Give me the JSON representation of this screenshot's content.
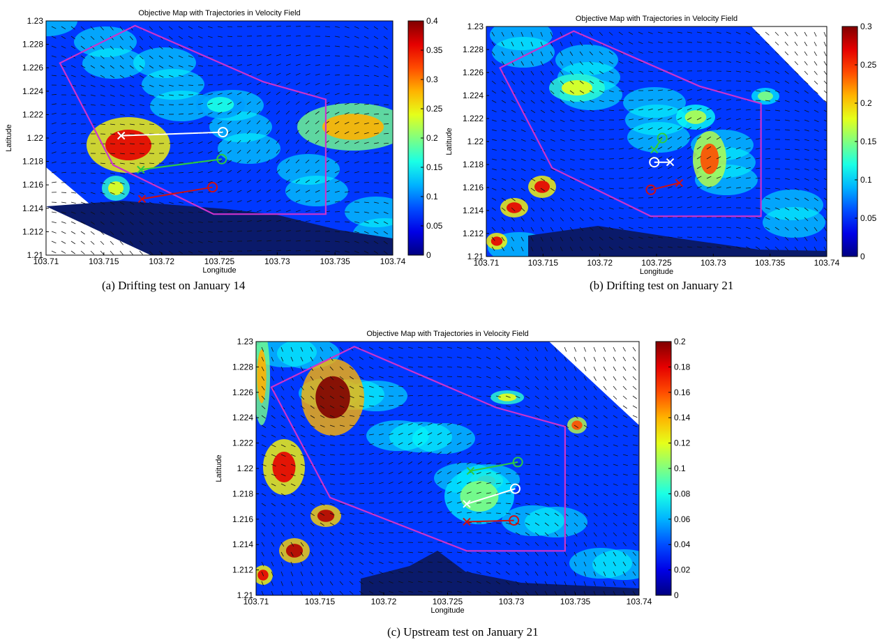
{
  "captions": {
    "a": "(a) Drifting test on January 14",
    "b": "(b) Drifting test on January 21",
    "c": "(c) Upstream test on January 21"
  },
  "chart_data": [
    {
      "id": "a",
      "type": "heatmap",
      "title": "Objective Map with Trajectories in Velocity Field",
      "xlabel": "Longitude",
      "ylabel": "Latitude",
      "xlim": [
        103.71,
        103.74
      ],
      "ylim": [
        1.21,
        1.23
      ],
      "xticks": [
        "103.71",
        "103.715",
        "103.72",
        "103.725",
        "103.73",
        "103.735",
        "103.74"
      ],
      "yticks": [
        "1.21",
        "1.212",
        "1.214",
        "1.216",
        "1.218",
        "1.22",
        "1.222",
        "1.224",
        "1.226",
        "1.228",
        "1.23"
      ],
      "colorbar": {
        "min": 0,
        "max": 0.4,
        "ticks": [
          "0",
          "0.05",
          "0.1",
          "0.15",
          "0.2",
          "0.25",
          "0.3",
          "0.35",
          "0.4"
        ]
      },
      "region_polygon": [
        [
          103.7177,
          1.2296
        ],
        [
          103.7112,
          1.2264
        ],
        [
          103.7158,
          1.2177
        ],
        [
          103.7245,
          1.2135
        ],
        [
          103.7342,
          1.2135
        ],
        [
          103.7342,
          1.2233
        ],
        [
          103.7288,
          1.2248
        ]
      ],
      "trajectories": [
        {
          "color": "#ffffff",
          "start": [
            103.7253,
            1.2205
          ],
          "end": [
            103.7165,
            1.2202
          ]
        },
        {
          "color": "#2ecc40",
          "start": [
            103.7252,
            1.2182
          ],
          "end": [
            103.7182,
            1.2173
          ]
        },
        {
          "color": "#d01010",
          "start": [
            103.7244,
            1.2158
          ],
          "end": [
            103.7183,
            1.2148
          ]
        }
      ]
    },
    {
      "id": "b",
      "type": "heatmap",
      "title": "Objective Map with Trajectories in Velocity Field",
      "xlabel": "Longitude",
      "ylabel": "Latitude",
      "xlim": [
        103.71,
        103.74
      ],
      "ylim": [
        1.21,
        1.23
      ],
      "xticks": [
        "103.71",
        "103.715",
        "103.72",
        "103.725",
        "103.73",
        "103.735",
        "103.74"
      ],
      "yticks": [
        "1.21",
        "1.212",
        "1.214",
        "1.216",
        "1.218",
        "1.22",
        "1.222",
        "1.224",
        "1.226",
        "1.228",
        "1.23"
      ],
      "colorbar": {
        "min": 0,
        "max": 0.3,
        "ticks": [
          "0",
          "0.05",
          "0.1",
          "0.15",
          "0.2",
          "0.25",
          "0.3"
        ]
      },
      "region_polygon": [
        [
          103.7177,
          1.2296
        ],
        [
          103.7112,
          1.2264
        ],
        [
          103.7158,
          1.2177
        ],
        [
          103.7245,
          1.2135
        ],
        [
          103.7342,
          1.2135
        ],
        [
          103.7342,
          1.2233
        ],
        [
          103.7288,
          1.2248
        ]
      ],
      "trajectories": [
        {
          "color": "#2ecc40",
          "start": [
            103.7255,
            1.2203
          ],
          "end": [
            103.7248,
            1.2193
          ]
        },
        {
          "color": "#ffffff",
          "start": [
            103.7248,
            1.2182
          ],
          "end": [
            103.7262,
            1.2182
          ]
        },
        {
          "color": "#d01010",
          "start": [
            103.7245,
            1.2158
          ],
          "end": [
            103.727,
            1.2164
          ]
        }
      ]
    },
    {
      "id": "c",
      "type": "heatmap",
      "title": "Objective Map with Trajectories in Velocity Field",
      "xlabel": "Longitude",
      "ylabel": "Latitude",
      "xlim": [
        103.71,
        103.74
      ],
      "ylim": [
        1.21,
        1.23
      ],
      "xticks": [
        "103.71",
        "103.715",
        "103.72",
        "103.725",
        "103.73",
        "103.735",
        "103.74"
      ],
      "yticks": [
        "1.21",
        "1.212",
        "1.214",
        "1.216",
        "1.218",
        "1.22",
        "1.222",
        "1.224",
        "1.226",
        "1.228",
        "1.23"
      ],
      "colorbar": {
        "min": 0,
        "max": 0.2,
        "ticks": [
          "0",
          "0.02",
          "0.04",
          "0.06",
          "0.08",
          "0.1",
          "0.12",
          "0.14",
          "0.16",
          "0.18",
          "0.2"
        ]
      },
      "region_polygon": [
        [
          103.7177,
          1.2296
        ],
        [
          103.7112,
          1.2264
        ],
        [
          103.7158,
          1.2177
        ],
        [
          103.7265,
          1.2135
        ],
        [
          103.7342,
          1.2135
        ],
        [
          103.7342,
          1.2233
        ],
        [
          103.7288,
          1.2248
        ]
      ],
      "trajectories": [
        {
          "color": "#2ecc40",
          "start": [
            103.7305,
            1.2205
          ],
          "end": [
            103.7268,
            1.2198
          ]
        },
        {
          "color": "#ffffff",
          "start": [
            103.7303,
            1.2184
          ],
          "end": [
            103.7265,
            1.2172
          ]
        },
        {
          "color": "#d01010",
          "start": [
            103.7302,
            1.2159
          ],
          "end": [
            103.7265,
            1.2158
          ]
        }
      ]
    }
  ]
}
